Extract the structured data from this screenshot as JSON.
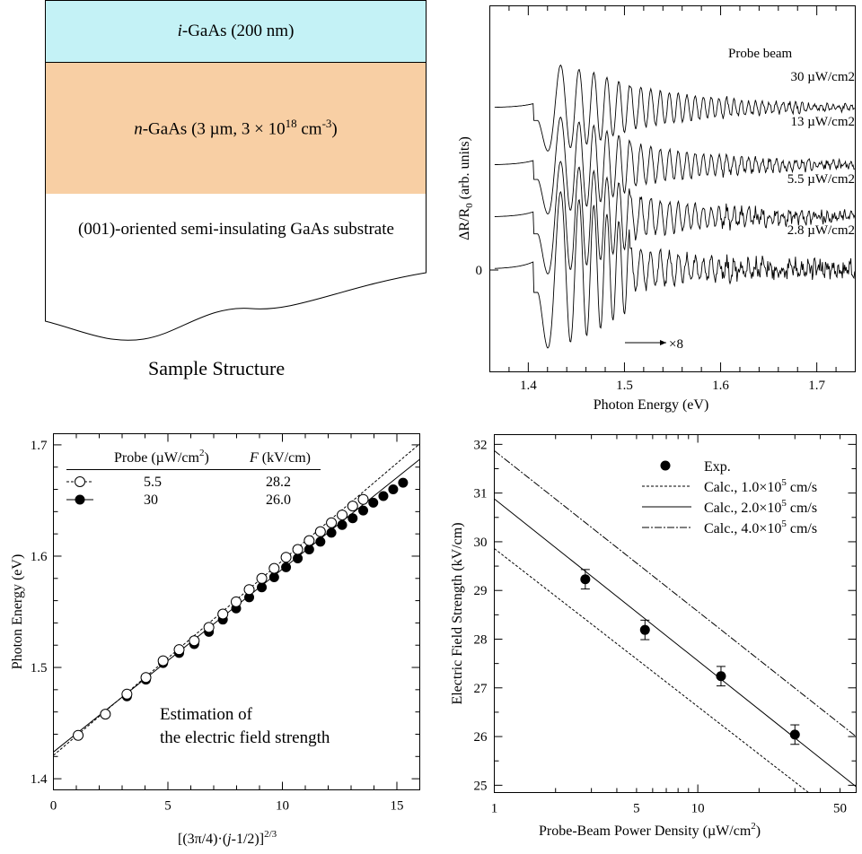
{
  "sample": {
    "layer1_label": "i-GaAs (200 nm)",
    "layer2_label": "n-GaAs (3 µm, 3 × 1018 cm-3)",
    "substrate_label": "(001)-oriented semi-insulating GaAs substrate",
    "caption": "Sample Structure",
    "layer1_color": "#c4f2f6",
    "layer2_color": "#f8cfa4"
  },
  "chart_data": [
    {
      "type": "line",
      "title": "",
      "xlabel": "Photon Energy (eV)",
      "ylabel": "ΔR/R0 (arb. units)",
      "xlim": [
        1.36,
        1.74
      ],
      "xticks": [
        "1.4",
        "1.5",
        "1.6",
        "1.7"
      ],
      "yticks": [
        "0"
      ],
      "legend_title": "Probe beam",
      "series": [
        {
          "name": "30 µW/cm2",
          "offset": 3
        },
        {
          "name": "13 µW/cm2",
          "offset": 2
        },
        {
          "name": "5.5 µW/cm2",
          "offset": 1
        },
        {
          "name": "2.8 µW/cm2",
          "offset": 0
        }
      ],
      "annotation": "×8",
      "magnification_start": 1.505
    },
    {
      "type": "scatter",
      "xlabel": "[(3π/4)·(j-1/2)]2/3",
      "ylabel": "Photon Energy (eV)",
      "xlim": [
        0,
        16
      ],
      "ylim": [
        1.39,
        1.71
      ],
      "xticks": [
        "0",
        "5",
        "10",
        "15"
      ],
      "yticks": [
        "1.4",
        "1.5",
        "1.6",
        "1.7"
      ],
      "annotation": [
        "Estimation of",
        "the electric field strength"
      ],
      "legend": {
        "header_probe": "Probe (µW/cm2)",
        "header_field": "F (kV/cm)",
        "rows": [
          {
            "probe": "5.5",
            "field": "28.2",
            "marker": "open"
          },
          {
            "probe": "30",
            "field": "26.0",
            "marker": "filled"
          }
        ]
      },
      "series": [
        {
          "probe": "5.5",
          "x": [
            1.08,
            2.27,
            3.21,
            4.04,
            4.79,
            5.49,
            6.15,
            6.79,
            7.4,
            7.98,
            8.55,
            9.1,
            9.64,
            10.16,
            10.67,
            11.17,
            11.66,
            12.14,
            12.61,
            13.07,
            13.53
          ],
          "y": [
            1.439,
            1.458,
            1.476,
            1.491,
            1.506,
            1.516,
            1.524,
            1.536,
            1.548,
            1.559,
            1.57,
            1.58,
            1.589,
            1.599,
            1.606,
            1.614,
            1.622,
            1.63,
            1.637,
            1.645,
            1.651
          ]
        },
        {
          "probe": "30",
          "x": [
            3.21,
            4.04,
            4.79,
            5.49,
            6.15,
            6.79,
            7.4,
            7.98,
            8.55,
            9.1,
            9.64,
            10.16,
            10.67,
            11.17,
            11.66,
            12.14,
            12.61,
            13.07,
            13.53,
            13.97,
            14.41,
            14.84,
            15.27
          ],
          "y": [
            1.474,
            1.489,
            1.504,
            1.513,
            1.521,
            1.532,
            1.543,
            1.553,
            1.563,
            1.572,
            1.581,
            1.59,
            1.598,
            1.606,
            1.613,
            1.621,
            1.628,
            1.634,
            1.641,
            1.648,
            1.654,
            1.66,
            1.666
          ]
        }
      ]
    },
    {
      "type": "scatter",
      "xlabel": "Probe-Beam Power Density (µW/cm2)",
      "ylabel": "Electric Field Strength (kV/cm)",
      "xscale": "log",
      "xlim": [
        1,
        60
      ],
      "ylim": [
        24.85,
        32.2
      ],
      "xticks": [
        "1",
        "5",
        "10",
        "50"
      ],
      "yticks": [
        "25",
        "26",
        "27",
        "28",
        "29",
        "30",
        "31",
        "32"
      ],
      "legend": [
        {
          "label": "Exp.",
          "style": "marker"
        },
        {
          "label": "Calc., 1.0×105 cm/s",
          "style": "dashed"
        },
        {
          "label": "Calc., 2.0×105 cm/s",
          "style": "solid"
        },
        {
          "label": "Calc., 4.0×105 cm/s",
          "style": "dashdot"
        }
      ],
      "points": {
        "x": [
          2.8,
          5.5,
          13,
          30
        ],
        "y": [
          29.23,
          28.19,
          27.24,
          26.04
        ],
        "err": [
          0.2,
          0.2,
          0.2,
          0.2
        ]
      },
      "lines": [
        {
          "style": "dashed",
          "x": [
            1,
            35
          ],
          "y": [
            29.86,
            24.85
          ]
        },
        {
          "style": "solid",
          "x": [
            1,
            60
          ],
          "y": [
            30.88,
            24.97
          ]
        },
        {
          "style": "dashdot",
          "x": [
            1,
            60
          ],
          "y": [
            31.87,
            26.0
          ]
        }
      ]
    }
  ]
}
